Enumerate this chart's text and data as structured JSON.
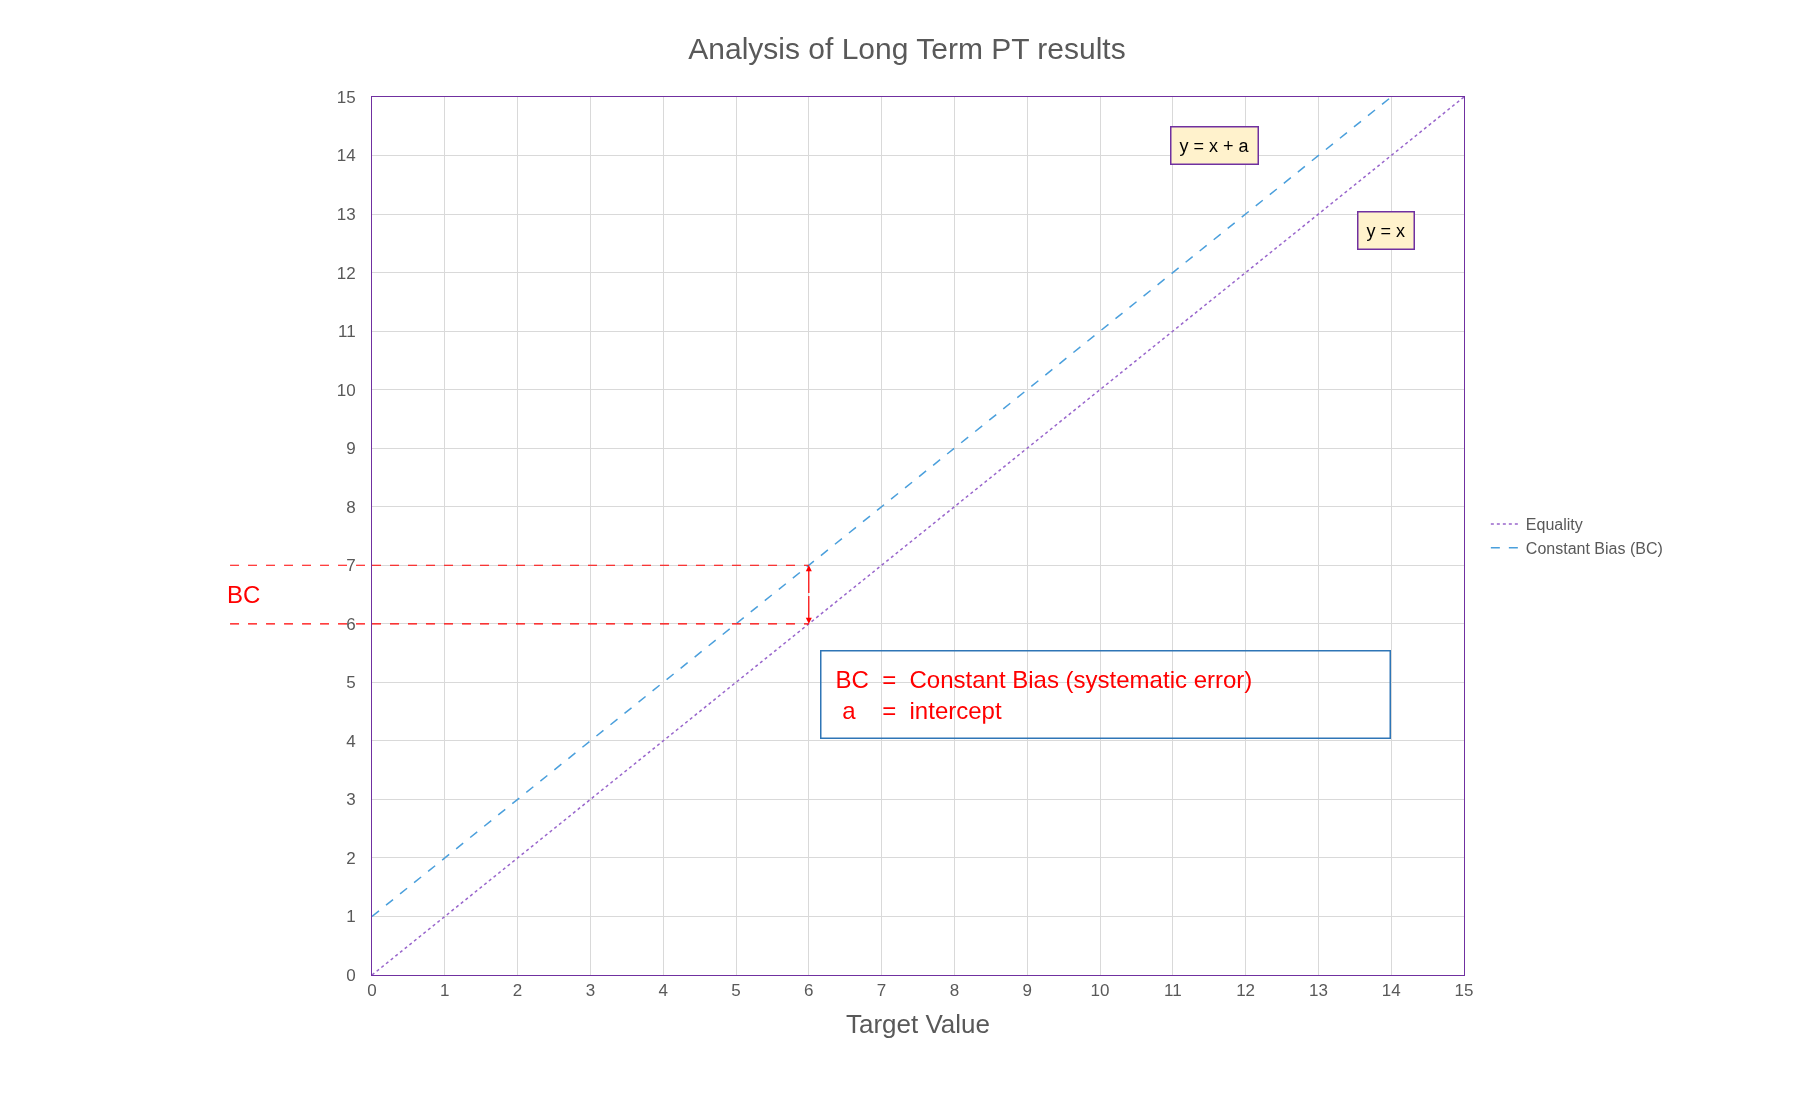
{
  "chart_data": {
    "type": "line",
    "title": "Analysis of Long Term PT results",
    "xlabel": "Target Value",
    "series": [
      {
        "name": "Equality",
        "color": "#9966cc",
        "line_style": "dotted",
        "x": [
          0,
          15
        ],
        "values": [
          0,
          15
        ]
      },
      {
        "name": "Constant Bias (BC)",
        "color": "#4a9fdc",
        "line_style": "dashed",
        "x": [
          0,
          14
        ],
        "values": [
          1,
          15
        ]
      }
    ],
    "xlim": [
      0,
      15
    ],
    "ylim": [
      0,
      15
    ],
    "xticks": [
      0,
      1,
      2,
      3,
      4,
      5,
      6,
      7,
      8,
      9,
      10,
      11,
      12,
      13,
      14,
      15
    ],
    "yticks": [
      0,
      1,
      2,
      3,
      4,
      5,
      6,
      7,
      8,
      9,
      10,
      11,
      12,
      13,
      14,
      15
    ],
    "grid": true,
    "legend": "right",
    "marker": "none",
    "ref_lines": [
      {
        "axis": "y",
        "value": 7,
        "color": "#ff0000",
        "line_style": "dashed"
      },
      {
        "axis": "y",
        "value": 6,
        "color": "#ff0000",
        "line_style": "dashed"
      }
    ],
    "annotations": [
      "y = x + a",
      "y = x",
      "BC",
      "BC  =  Constant Bias (systematic error)\n a    =  intercept"
    ]
  }
}
